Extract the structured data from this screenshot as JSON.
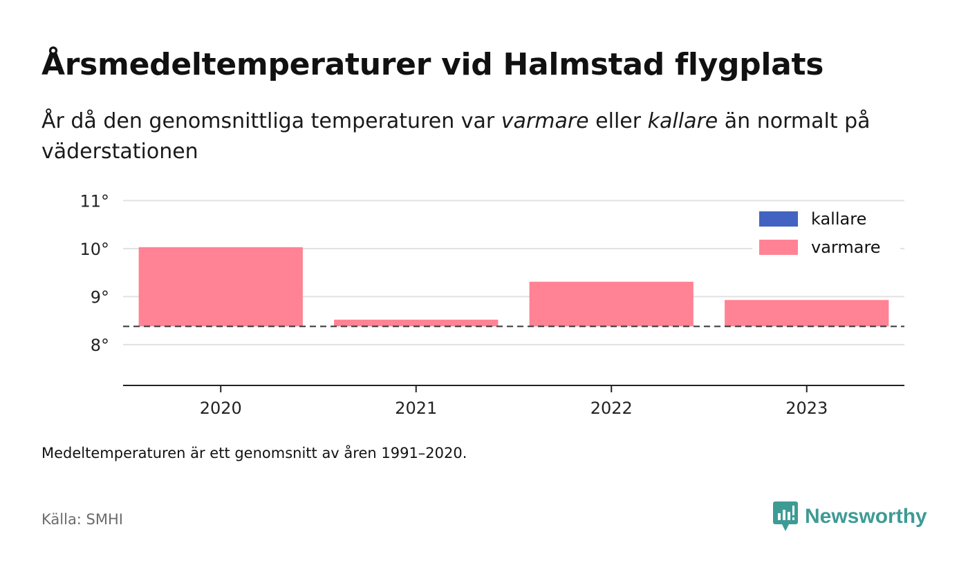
{
  "header": {
    "title": "Årsmedeltemperaturer vid Halmstad flygplats",
    "subtitle_part1": "År då den genomsnittliga temperaturen var ",
    "subtitle_warm": "varmare",
    "subtitle_part2": " eller ",
    "subtitle_cold": "kallare",
    "subtitle_part3": " än normalt på väderstationen"
  },
  "chart_data": {
    "type": "bar",
    "categories": [
      "2020",
      "2021",
      "2022",
      "2023"
    ],
    "values": [
      10.03,
      8.52,
      9.31,
      8.93
    ],
    "baseline": 8.38,
    "ylim": [
      7.15,
      11.15
    ],
    "yticks": [
      8,
      9,
      10,
      11
    ],
    "ytick_labels": [
      "8°",
      "9°",
      "10°",
      "11°"
    ],
    "grid": true,
    "legend": {
      "placement": "top-right",
      "entries": [
        {
          "label": "kallare",
          "color": "#4263c2"
        },
        {
          "label": "varmare",
          "color": "#ff8394"
        }
      ]
    },
    "colors": {
      "warmer": "#ff8394",
      "colder": "#4263c2"
    }
  },
  "footer": {
    "note": "Medeltemperaturen är ett genomsnitt av åren 1991–2020.",
    "source": "Källa: SMHI",
    "brand": "Newsworthy",
    "brand_color": "#3d9b94"
  }
}
